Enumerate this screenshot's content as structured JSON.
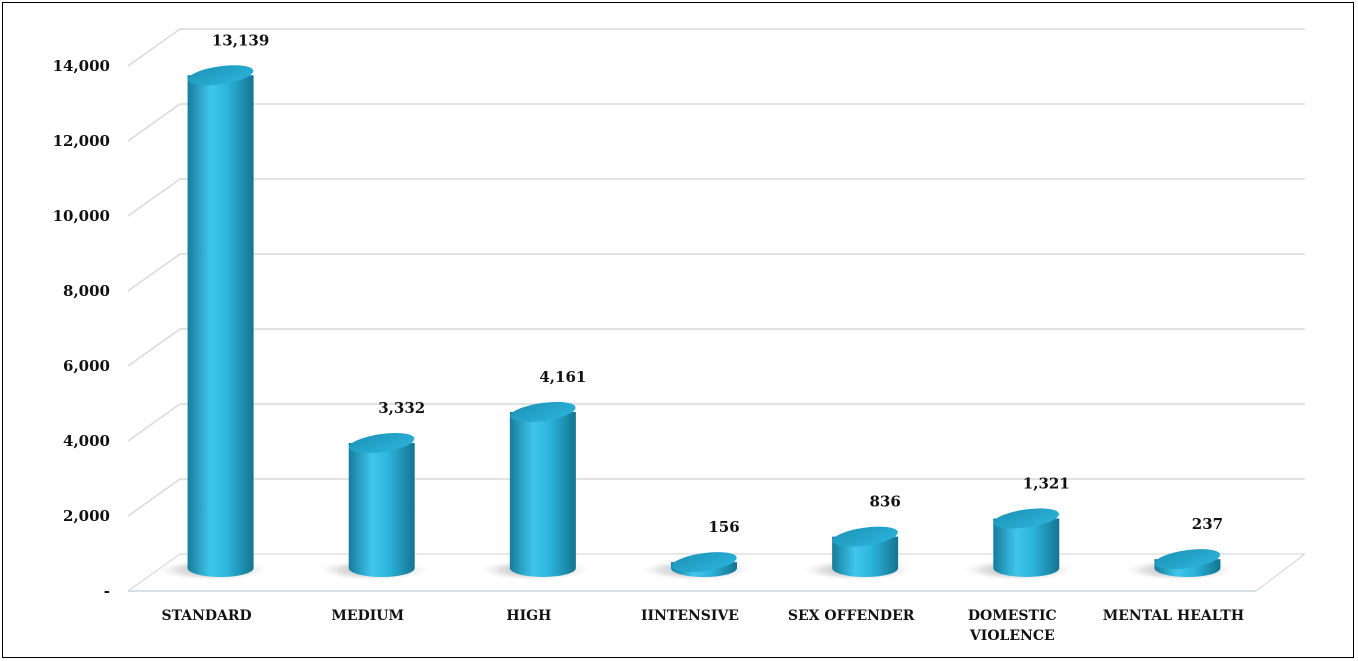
{
  "chart_data": {
    "type": "bar",
    "style": "3d-cylinder",
    "title": "",
    "xlabel": "",
    "ylabel": "",
    "categories": [
      "STANDARD",
      "MEDIUM",
      "HIGH",
      "IINTENSIVE",
      "SEX OFFENDER",
      "DOMESTIC VIOLENCE",
      "MENTAL HEALTH"
    ],
    "category_lines": [
      [
        "STANDARD"
      ],
      [
        "MEDIUM"
      ],
      [
        "HIGH"
      ],
      [
        "IINTENSIVE"
      ],
      [
        "SEX OFFENDER"
      ],
      [
        "DOMESTIC",
        "VIOLENCE"
      ],
      [
        "MENTAL HEALTH"
      ]
    ],
    "values": [
      13139,
      3332,
      4161,
      156,
      836,
      1321,
      237
    ],
    "data_labels": [
      "13,139",
      "3,332",
      "4,161",
      "156",
      "836",
      "1,321",
      "237"
    ],
    "ylim": [
      0,
      14000
    ],
    "yticks": [
      0,
      2000,
      4000,
      6000,
      8000,
      10000,
      12000,
      14000
    ],
    "ytick_labels": [
      "-",
      "2,000",
      "4,000",
      "6,000",
      "8,000",
      "10,000",
      "12,000",
      "14,000"
    ],
    "grid": true,
    "legend": "none",
    "colors": {
      "bar_light": "#3fc6ec",
      "bar_mid": "#22a9d2",
      "bar_dark": "#167c9c",
      "bar_top": "#2bb4dd",
      "grid": "#d9d9d9",
      "axis": "#bcbcbc"
    }
  }
}
